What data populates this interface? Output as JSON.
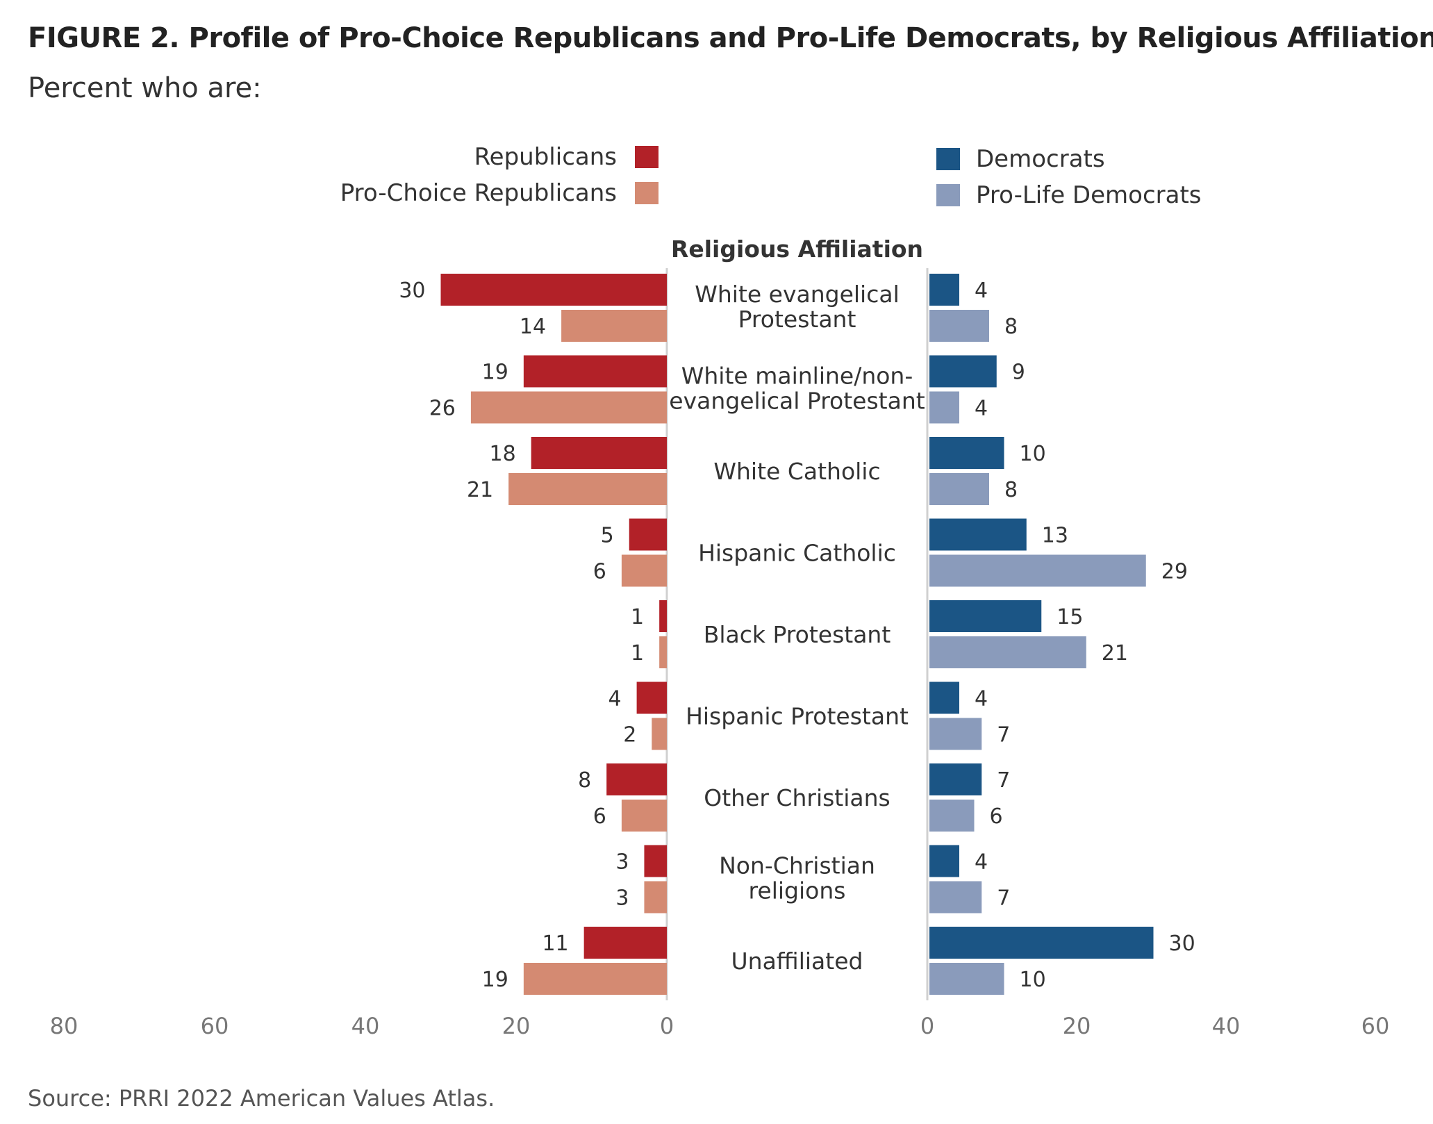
{
  "title": "FIGURE 2.  Profile of Pro-Choice Republicans and Pro-Life Democrats, by Religious Affiliation",
  "subtitle": "Percent who are:",
  "source": "Source: PRRI 2022 American Values Atlas.",
  "chart_data": {
    "type": "bar",
    "orientation": "horizontal",
    "layout": "back-to-back",
    "category_header": "Religious Affiliation",
    "categories": [
      [
        "White evangelical",
        "Protestant"
      ],
      [
        "White mainline/non-",
        "evangelical Protestant"
      ],
      [
        "White Catholic"
      ],
      [
        "Hispanic Catholic"
      ],
      [
        "Black Protestant"
      ],
      [
        "Hispanic Protestant"
      ],
      [
        "Other Christians"
      ],
      [
        "Non-Christian",
        "religions"
      ],
      [
        "Unaffiliated"
      ]
    ],
    "left": {
      "axis_ticks": [
        "80",
        "60",
        "40",
        "20",
        "0"
      ],
      "xlim": [
        0,
        80
      ],
      "series": [
        {
          "name": "Republicans",
          "color": "#b22128",
          "values": [
            30,
            19,
            18,
            5,
            1,
            4,
            8,
            3,
            11
          ]
        },
        {
          "name": "Pro-Choice Republicans",
          "color": "#d48a72",
          "values": [
            14,
            26,
            21,
            6,
            1,
            2,
            6,
            3,
            19
          ]
        }
      ]
    },
    "right": {
      "axis_ticks": [
        "0",
        "20",
        "40",
        "60"
      ],
      "xlim": [
        0,
        60
      ],
      "series": [
        {
          "name": "Democrats",
          "color": "#1b5585",
          "values": [
            4,
            9,
            10,
            13,
            15,
            4,
            7,
            4,
            30
          ]
        },
        {
          "name": "Pro-Life Democrats",
          "color": "#8a9bbb",
          "values": [
            8,
            4,
            8,
            29,
            21,
            7,
            6,
            7,
            10
          ]
        }
      ]
    },
    "legend_position": "top"
  }
}
